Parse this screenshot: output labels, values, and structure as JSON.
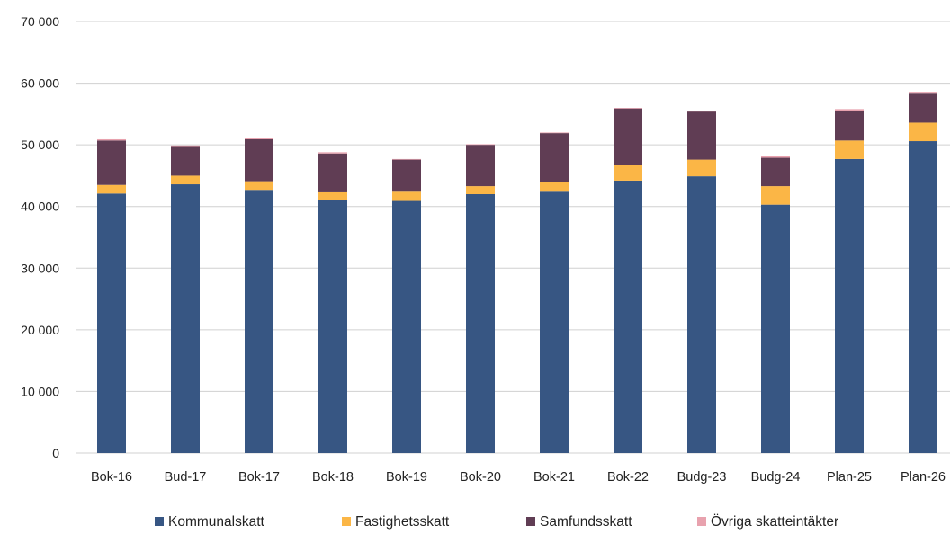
{
  "chart_data": {
    "type": "bar",
    "stacked": true,
    "categories": [
      "Bok-16",
      "Bud-17",
      "Bok-17",
      "Bok-18",
      "Bok-19",
      "Bok-20",
      "Bok-21",
      "Bok-22",
      "Budg-23",
      "Budg-24",
      "Plan-25",
      "Plan-26"
    ],
    "series": [
      {
        "name": "Kommunalskatt",
        "color": "#375683",
        "values": [
          42100,
          43600,
          42700,
          41000,
          40900,
          42000,
          42400,
          44200,
          44900,
          40300,
          47700,
          50600
        ]
      },
      {
        "name": "Fastighetsskatt",
        "color": "#FBB646",
        "values": [
          1400,
          1400,
          1400,
          1300,
          1500,
          1300,
          1500,
          2500,
          2700,
          3000,
          3000,
          3000
        ]
      },
      {
        "name": "Samfundsskatt",
        "color": "#603D54",
        "values": [
          7200,
          4800,
          6800,
          6300,
          5200,
          6700,
          8000,
          9200,
          7800,
          4600,
          4800,
          4700
        ]
      },
      {
        "name": "Övriga skatteintäkter",
        "color": "#E8A2AE",
        "values": [
          200,
          100,
          200,
          200,
          100,
          100,
          100,
          100,
          100,
          300,
          300,
          300
        ]
      }
    ],
    "yticks": [
      "0",
      "10 000",
      "20 000",
      "30 000",
      "40 000",
      "50 000",
      "60 000",
      "70 000"
    ],
    "ylim": [
      0,
      70000
    ],
    "grid": true,
    "legend_position": "bottom",
    "title": "",
    "xlabel": "",
    "ylabel": ""
  }
}
